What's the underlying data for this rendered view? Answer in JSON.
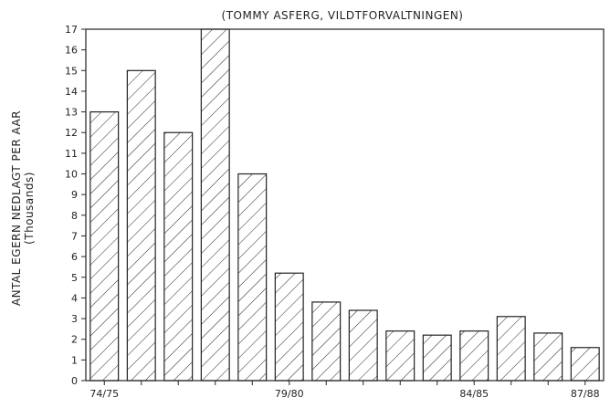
{
  "chart_data": {
    "type": "bar",
    "title": "(TOMMY ASFERG, VILDTFORVALTNINGEN)",
    "ylabel": "ANTAL EGERN NEDLAGT PER AAR",
    "ylabel_unit": "(Thousands)",
    "xlabel": "",
    "categories": [
      "74/75",
      "",
      "",
      "",
      "",
      "79/80",
      "",
      "",
      "",
      "",
      "84/85",
      "",
      "",
      "87/88"
    ],
    "values": [
      13,
      15,
      12,
      17,
      10,
      5.2,
      3.8,
      3.4,
      2.4,
      2.2,
      2.4,
      3.1,
      2.3,
      1.6
    ],
    "ylim": [
      0,
      17
    ],
    "yticks": [
      "0",
      "1",
      "2",
      "3",
      "4",
      "5",
      "6",
      "7",
      "8",
      "9",
      "10",
      "11",
      "12",
      "13",
      "14",
      "15",
      "16",
      "17"
    ],
    "grid": false,
    "bar_fill": "diagonal-hatch",
    "colors": {
      "ink": "#222222",
      "background": "#ffffff"
    }
  }
}
